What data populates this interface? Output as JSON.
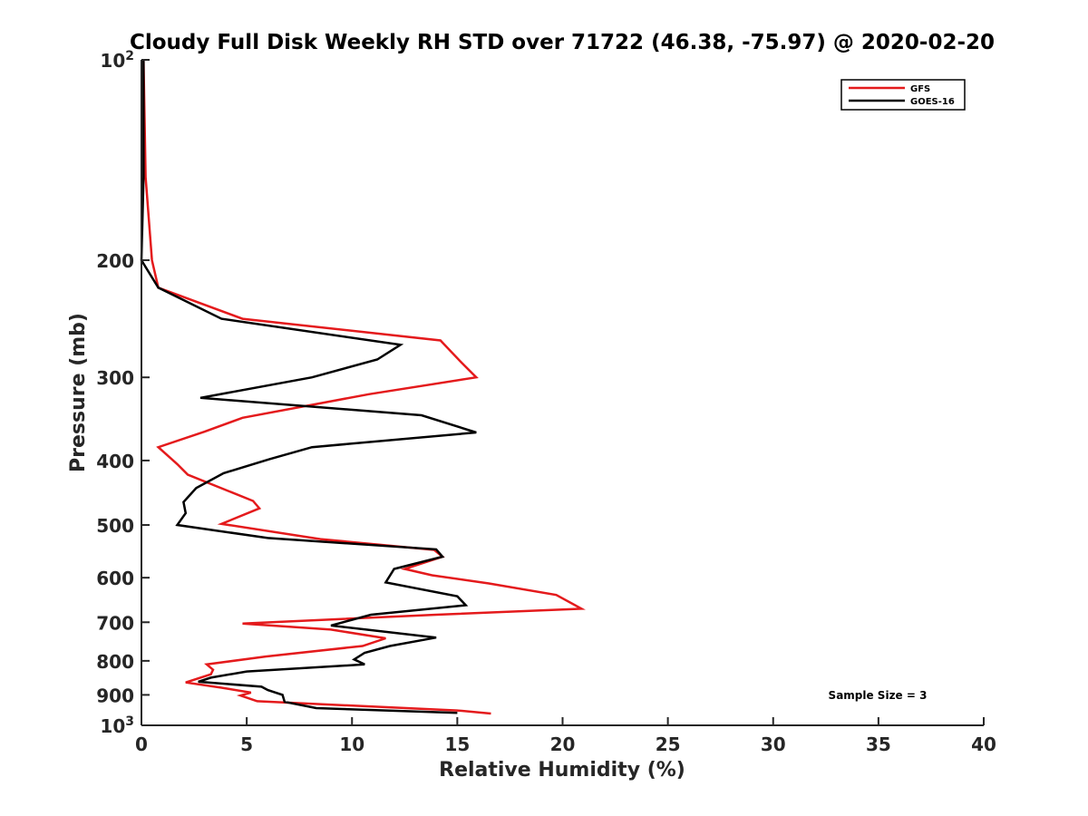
{
  "chart_data": {
    "type": "line",
    "title": "Cloudy Full Disk Weekly RH STD over 71722 (46.38, -75.97) @ 2020-02-20",
    "xlabel": "Relative Humidity (%)",
    "ylabel": "Pressure (mb)",
    "xlim": [
      0,
      40
    ],
    "ylim": [
      100,
      1000
    ],
    "yscale": "log",
    "y_reversed": true,
    "grid": false,
    "legend_position": "top-right",
    "x_ticks": [
      0,
      5,
      10,
      15,
      20,
      25,
      30,
      35,
      40
    ],
    "x_tick_labels": [
      "0",
      "5",
      "10",
      "15",
      "20",
      "25",
      "30",
      "35",
      "40"
    ],
    "y_ticks": [
      100,
      200,
      300,
      400,
      500,
      600,
      700,
      800,
      900,
      1000
    ],
    "y_tick_labels": [
      {
        "base": "10",
        "exp": "2"
      },
      {
        "base": "200",
        "exp": ""
      },
      {
        "base": "300",
        "exp": ""
      },
      {
        "base": "400",
        "exp": ""
      },
      {
        "base": "500",
        "exp": ""
      },
      {
        "base": "600",
        "exp": ""
      },
      {
        "base": "700",
        "exp": ""
      },
      {
        "base": "800",
        "exp": ""
      },
      {
        "base": "900",
        "exp": ""
      },
      {
        "base": "10",
        "exp": "3"
      }
    ],
    "series": [
      {
        "name": "GFS",
        "color": "#e41a1c",
        "points": [
          [
            0.1,
            100
          ],
          [
            0.2,
            150
          ],
          [
            0.5,
            200
          ],
          [
            0.8,
            220
          ],
          [
            4.8,
            245
          ],
          [
            14.2,
            264
          ],
          [
            15.2,
            285
          ],
          [
            15.9,
            300
          ],
          [
            10.8,
            318
          ],
          [
            4.8,
            345
          ],
          [
            3.0,
            362
          ],
          [
            0.8,
            382
          ],
          [
            1.7,
            405
          ],
          [
            2.2,
            420
          ],
          [
            5.3,
            460
          ],
          [
            5.6,
            472
          ],
          [
            3.8,
            498
          ],
          [
            8.5,
            525
          ],
          [
            13.9,
            545
          ],
          [
            14.3,
            558
          ],
          [
            12.5,
            582
          ],
          [
            13.8,
            595
          ],
          [
            16.5,
            612
          ],
          [
            19.7,
            637
          ],
          [
            20.9,
            668
          ],
          [
            14.0,
            682
          ],
          [
            4.8,
            703
          ],
          [
            9.0,
            718
          ],
          [
            11.6,
            740
          ],
          [
            10.5,
            760
          ],
          [
            5.9,
            788
          ],
          [
            3.1,
            810
          ],
          [
            3.4,
            825
          ],
          [
            3.3,
            838
          ],
          [
            2.1,
            862
          ],
          [
            3.8,
            878
          ],
          [
            5.2,
            893
          ],
          [
            4.7,
            902
          ],
          [
            5.5,
            920
          ],
          [
            15.0,
            950
          ],
          [
            16.6,
            960
          ]
        ]
      },
      {
        "name": "GOES-16",
        "color": "#000000",
        "points": [
          [
            0.1,
            100
          ],
          [
            0.1,
            150
          ],
          [
            0.0,
            200
          ],
          [
            0.8,
            220
          ],
          [
            3.8,
            245
          ],
          [
            12.3,
            268
          ],
          [
            11.2,
            282
          ],
          [
            8.1,
            300
          ],
          [
            2.8,
            322
          ],
          [
            13.3,
            342
          ],
          [
            15.9,
            363
          ],
          [
            8.1,
            382
          ],
          [
            6.1,
            398
          ],
          [
            3.9,
            418
          ],
          [
            2.6,
            440
          ],
          [
            2.0,
            462
          ],
          [
            2.1,
            480
          ],
          [
            1.7,
            500
          ],
          [
            6.0,
            523
          ],
          [
            14.0,
            544
          ],
          [
            14.3,
            558
          ],
          [
            12.0,
            582
          ],
          [
            11.6,
            610
          ],
          [
            15.0,
            640
          ],
          [
            15.4,
            660
          ],
          [
            10.9,
            682
          ],
          [
            9.0,
            708
          ],
          [
            14.0,
            738
          ],
          [
            11.8,
            760
          ],
          [
            10.6,
            778
          ],
          [
            10.1,
            796
          ],
          [
            10.6,
            810
          ],
          [
            5.0,
            830
          ],
          [
            3.3,
            848
          ],
          [
            2.7,
            860
          ],
          [
            5.7,
            875
          ],
          [
            6.0,
            885
          ],
          [
            6.7,
            900
          ],
          [
            6.8,
            922
          ],
          [
            8.3,
            942
          ],
          [
            15.0,
            958
          ]
        ]
      }
    ],
    "legend": [
      {
        "label": "GFS",
        "color": "#e41a1c"
      },
      {
        "label": "GOES-16",
        "color": "#000000"
      }
    ],
    "annotations": [
      {
        "text": "Sample Size = 3"
      }
    ]
  }
}
